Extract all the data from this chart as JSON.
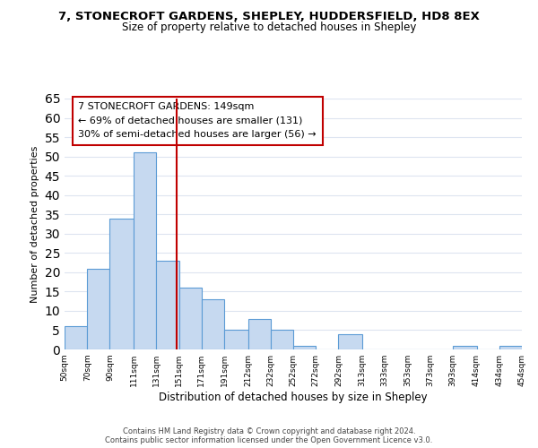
{
  "title": "7, STONECROFT GARDENS, SHEPLEY, HUDDERSFIELD, HD8 8EX",
  "subtitle": "Size of property relative to detached houses in Shepley",
  "xlabel": "Distribution of detached houses by size in Shepley",
  "ylabel": "Number of detached properties",
  "bar_edges": [
    50,
    70,
    90,
    111,
    131,
    151,
    171,
    191,
    212,
    232,
    252,
    272,
    292,
    313,
    333,
    353,
    373,
    393,
    414,
    434,
    454
  ],
  "bar_heights": [
    6,
    21,
    34,
    51,
    23,
    16,
    13,
    5,
    8,
    5,
    1,
    0,
    4,
    0,
    0,
    0,
    0,
    1,
    0,
    1
  ],
  "bar_color": "#c6d9f0",
  "bar_edge_color": "#5b9bd5",
  "vline_x": 149,
  "vline_color": "#c00000",
  "ylim": [
    0,
    65
  ],
  "yticks": [
    0,
    5,
    10,
    15,
    20,
    25,
    30,
    35,
    40,
    45,
    50,
    55,
    60,
    65
  ],
  "tick_labels": [
    "50sqm",
    "70sqm",
    "90sqm",
    "111sqm",
    "131sqm",
    "151sqm",
    "171sqm",
    "191sqm",
    "212sqm",
    "232sqm",
    "252sqm",
    "272sqm",
    "292sqm",
    "313sqm",
    "333sqm",
    "353sqm",
    "373sqm",
    "393sqm",
    "414sqm",
    "434sqm",
    "454sqm"
  ],
  "annotation_title": "7 STONECROFT GARDENS: 149sqm",
  "annotation_line1": "← 69% of detached houses are smaller (131)",
  "annotation_line2": "30% of semi-detached houses are larger (56) →",
  "annotation_box_color": "#ffffff",
  "annotation_box_edge": "#c00000",
  "footnote1": "Contains HM Land Registry data © Crown copyright and database right 2024.",
  "footnote2": "Contains public sector information licensed under the Open Government Licence v3.0.",
  "bg_color": "#ffffff",
  "grid_color": "#dde4f0"
}
